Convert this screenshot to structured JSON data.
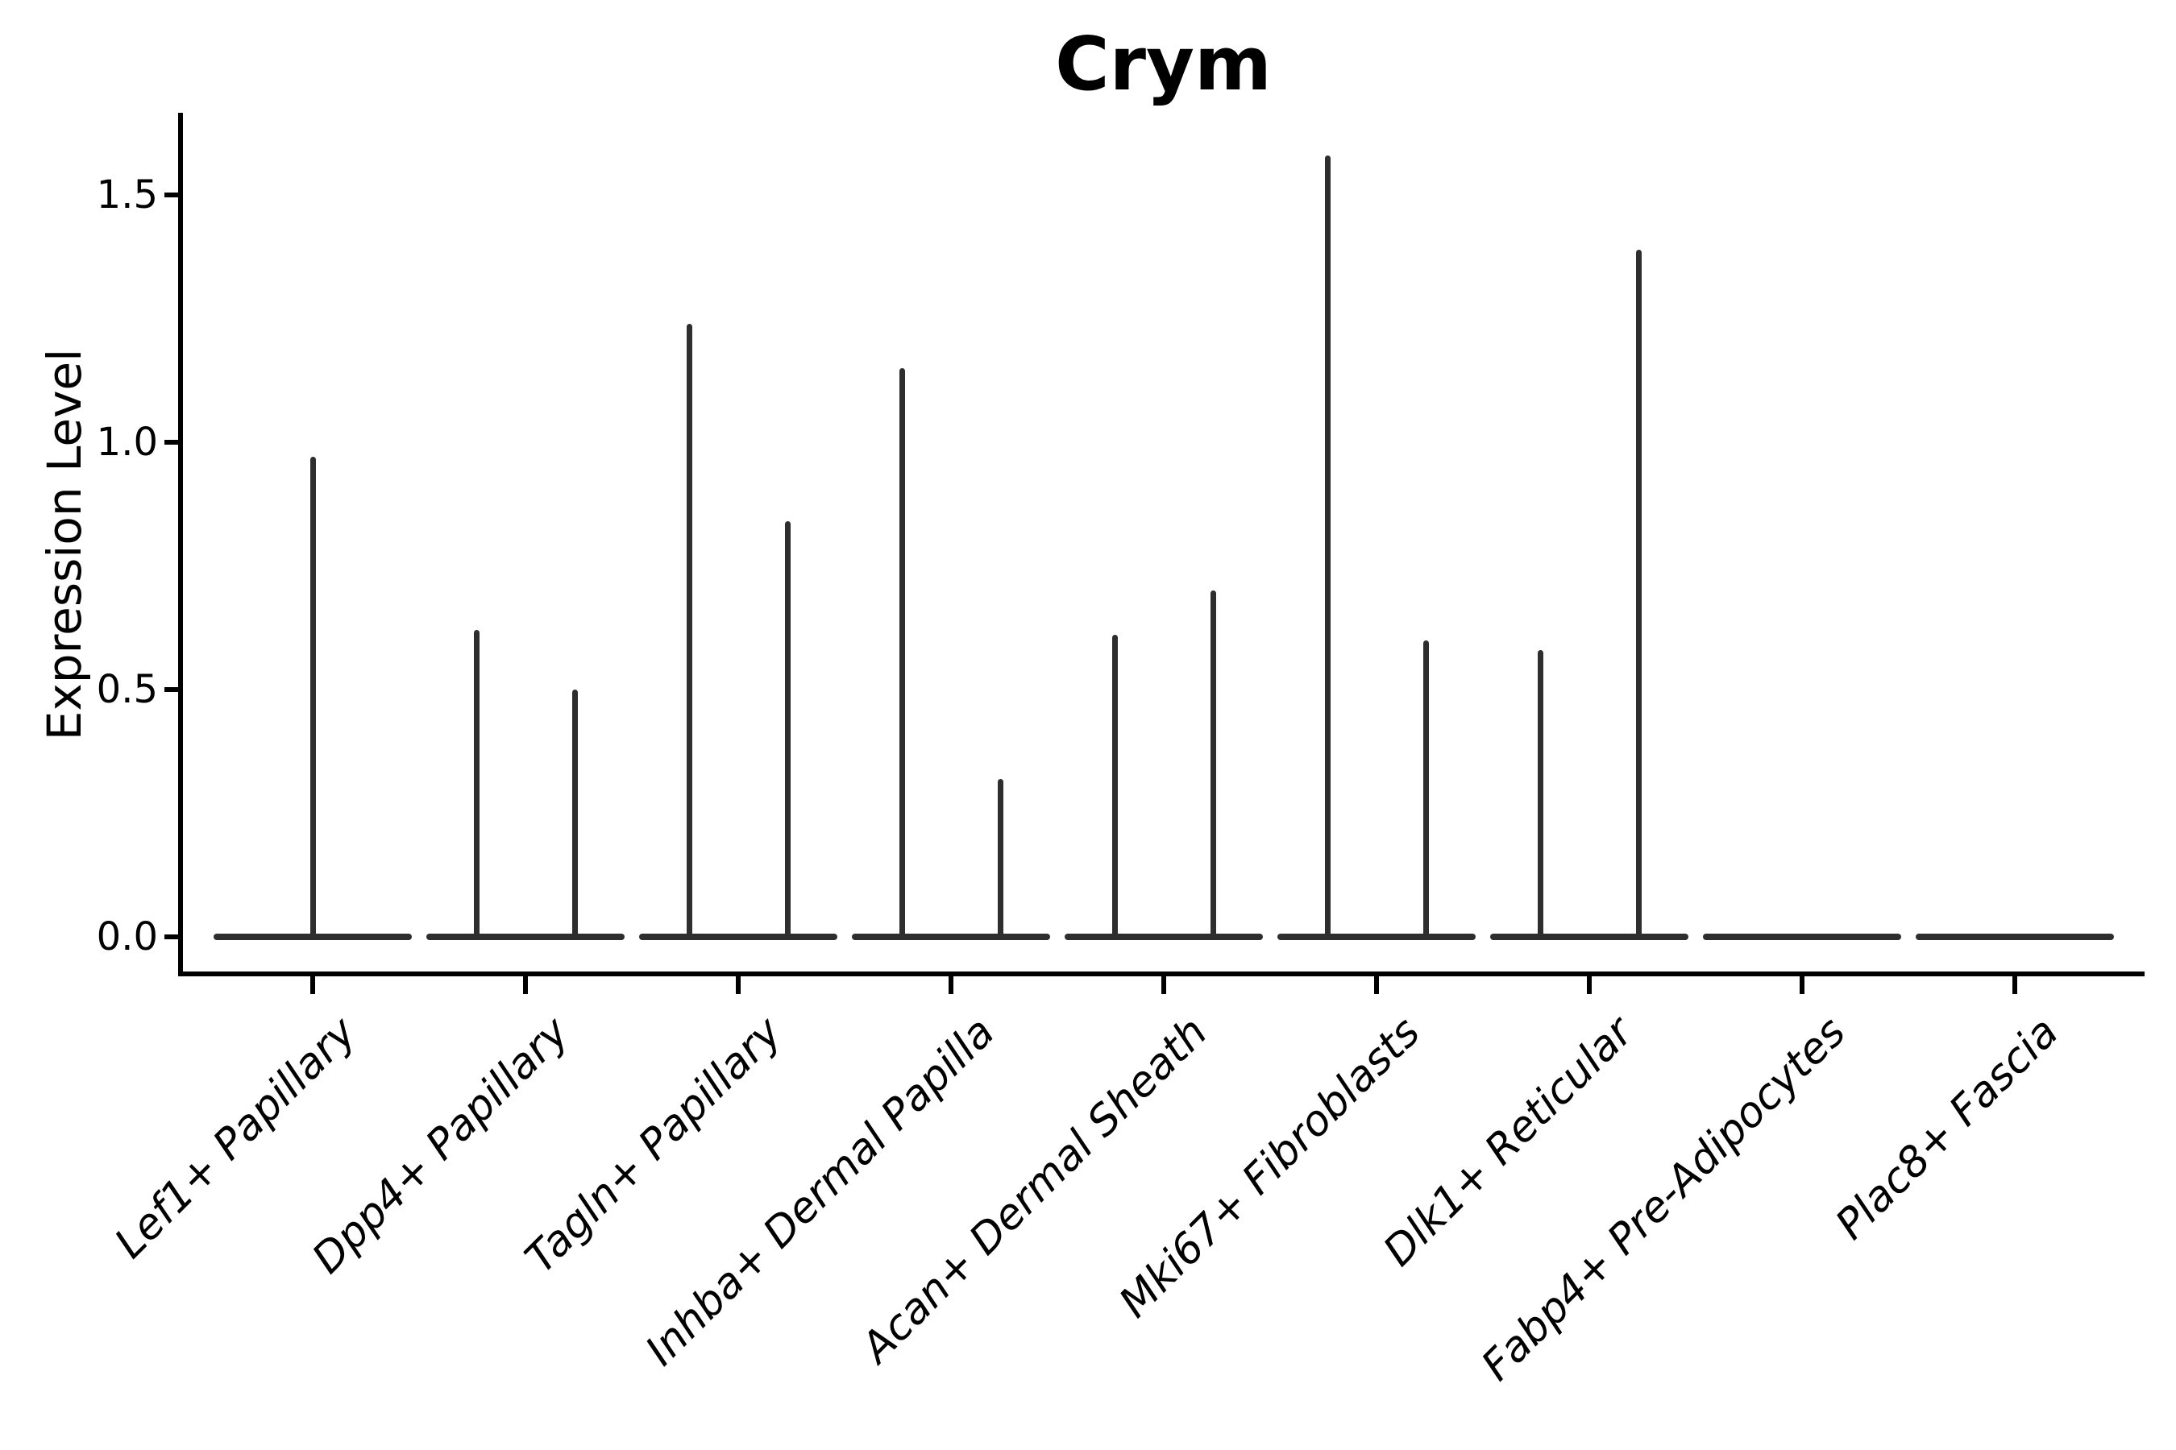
{
  "title": "Crym",
  "colors": {
    "background": "#ffffff",
    "axis": "#000000",
    "text": "#000000",
    "violin_line": "#2e2e2e"
  },
  "y_axis": {
    "label": "Expression Level",
    "tick_labels": [
      "0.0",
      "0.5",
      "1.0",
      "1.5"
    ]
  },
  "chart_data": {
    "type": "violin",
    "title": "Crym",
    "xlabel": "",
    "ylabel": "Expression Level",
    "ylim": [
      -0.08,
      1.66
    ],
    "yticks": [
      0.0,
      0.5,
      1.0,
      1.5
    ],
    "grid": false,
    "legend": false,
    "orientation": "vertical",
    "description": "Violin plot of Crym expression per dermal fibroblast cluster. Expression is zero for most cells, so each violin renders as a flat line at 0 with a thin vertical spike up to the cluster maximum. Clusters 2-7 contain two side-by-side violins (split groups) with different maxima; cluster 1 has a single centered spike; clusters 8-9 are entirely flat at 0.",
    "categories": [
      "Lef1+ Papillary",
      "Dpp4+ Papillary",
      "Tagln+ Papillary",
      "Inhba+ Dermal Papilla",
      "Acan+ Dermal Sheath",
      "Mki67+ Fibroblasts",
      "Dlk1+ Reticular",
      "Fabp4+ Pre-Adipocytes",
      "Plac8+ Fascia"
    ],
    "violins": [
      {
        "category": "Lef1+ Papillary",
        "spikes": [
          {
            "pos": "center",
            "max": 0.97
          }
        ]
      },
      {
        "category": "Dpp4+ Papillary",
        "spikes": [
          {
            "pos": "left",
            "max": 0.62
          },
          {
            "pos": "right",
            "max": 0.5
          }
        ]
      },
      {
        "category": "Tagln+ Papillary",
        "spikes": [
          {
            "pos": "left",
            "max": 1.24
          },
          {
            "pos": "right",
            "max": 0.84
          }
        ]
      },
      {
        "category": "Inhba+ Dermal Papilla",
        "spikes": [
          {
            "pos": "left",
            "max": 1.15
          },
          {
            "pos": "right",
            "max": 0.32
          }
        ]
      },
      {
        "category": "Acan+ Dermal Sheath",
        "spikes": [
          {
            "pos": "left",
            "max": 0.61
          },
          {
            "pos": "right",
            "max": 0.7
          }
        ]
      },
      {
        "category": "Mki67+ Fibroblasts",
        "spikes": [
          {
            "pos": "left",
            "max": 1.58
          },
          {
            "pos": "right",
            "max": 0.6
          }
        ]
      },
      {
        "category": "Dlk1+ Reticular",
        "spikes": [
          {
            "pos": "left",
            "max": 0.58
          },
          {
            "pos": "right",
            "max": 1.39
          }
        ]
      },
      {
        "category": "Fabp4+ Pre-Adipocytes",
        "spikes": []
      },
      {
        "category": "Plac8+ Fascia",
        "spikes": []
      }
    ]
  }
}
